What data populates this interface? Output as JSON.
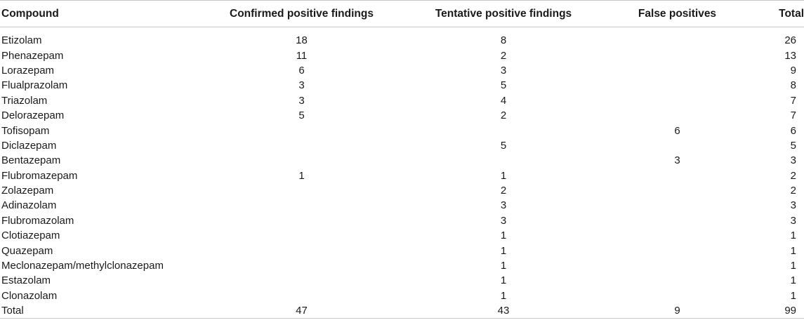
{
  "headers": {
    "compound": "Compound",
    "confirmed": "Confirmed positive findings",
    "tentative": "Tentative positive findings",
    "false_pos": "False positives",
    "total": "Total"
  },
  "rows": [
    {
      "compound": "Etizolam",
      "confirmed": "18",
      "tentative": "8",
      "false_pos": "",
      "total": "26"
    },
    {
      "compound": "Phenazepam",
      "confirmed": "11",
      "tentative": "2",
      "false_pos": "",
      "total": "13"
    },
    {
      "compound": "Lorazepam",
      "confirmed": "6",
      "tentative": "3",
      "false_pos": "",
      "total": "9"
    },
    {
      "compound": "Flualprazolam",
      "confirmed": "3",
      "tentative": "5",
      "false_pos": "",
      "total": "8"
    },
    {
      "compound": "Triazolam",
      "confirmed": "3",
      "tentative": "4",
      "false_pos": "",
      "total": "7"
    },
    {
      "compound": "Delorazepam",
      "confirmed": "5",
      "tentative": "2",
      "false_pos": "",
      "total": "7"
    },
    {
      "compound": "Tofisopam",
      "confirmed": "",
      "tentative": "",
      "false_pos": "6",
      "total": "6"
    },
    {
      "compound": "Diclazepam",
      "confirmed": "",
      "tentative": "5",
      "false_pos": "",
      "total": "5"
    },
    {
      "compound": "Bentazepam",
      "confirmed": "",
      "tentative": "",
      "false_pos": "3",
      "total": "3"
    },
    {
      "compound": "Flubromazepam",
      "confirmed": "1",
      "tentative": "1",
      "false_pos": "",
      "total": "2"
    },
    {
      "compound": "Zolazepam",
      "confirmed": "",
      "tentative": "2",
      "false_pos": "",
      "total": "2"
    },
    {
      "compound": "Adinazolam",
      "confirmed": "",
      "tentative": "3",
      "false_pos": "",
      "total": "3"
    },
    {
      "compound": "Flubromazolam",
      "confirmed": "",
      "tentative": "3",
      "false_pos": "",
      "total": "3"
    },
    {
      "compound": "Clotiazepam",
      "confirmed": "",
      "tentative": "1",
      "false_pos": "",
      "total": "1"
    },
    {
      "compound": "Quazepam",
      "confirmed": "",
      "tentative": "1",
      "false_pos": "",
      "total": "1"
    },
    {
      "compound": "Meclonazepam/methylclonazepam",
      "confirmed": "",
      "tentative": "1",
      "false_pos": "",
      "total": "1"
    },
    {
      "compound": "Estazolam",
      "confirmed": "",
      "tentative": "1",
      "false_pos": "",
      "total": "1"
    },
    {
      "compound": "Clonazolam",
      "confirmed": "",
      "tentative": "1",
      "false_pos": "",
      "total": "1"
    }
  ],
  "total_row": {
    "compound": "Total",
    "confirmed": "47",
    "tentative": "43",
    "false_pos": "9",
    "total": "99"
  }
}
